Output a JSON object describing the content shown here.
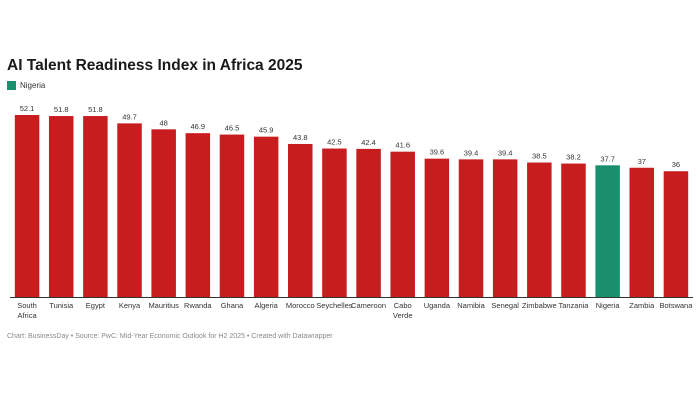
{
  "chart_data": {
    "type": "bar",
    "title": "AI Talent Readiness Index in Africa 2025",
    "legend": [
      {
        "label": "Nigeria",
        "color": "#1a8f6e"
      }
    ],
    "categories": [
      "South Africa",
      "Tunisia",
      "Egypt",
      "Kenya",
      "Mauritius",
      "Rwanda",
      "Ghana",
      "Algeria",
      "Morocco",
      "Seychelles",
      "Cameroon",
      "Cabo Verde",
      "Uganda",
      "Namibia",
      "Senegal",
      "Zimbabwe",
      "Tanzania",
      "Nigeria",
      "Zambia",
      "Botswana"
    ],
    "category_labels": [
      [
        "South",
        "Africa"
      ],
      [
        "Tunisia"
      ],
      [
        "Egypt"
      ],
      [
        "Kenya"
      ],
      [
        "Mauritius"
      ],
      [
        "Rwanda"
      ],
      [
        "Ghana"
      ],
      [
        "Algeria"
      ],
      [
        "Morocco"
      ],
      [
        "Seychelles"
      ],
      [
        "Cameroon"
      ],
      [
        "Cabo",
        "Verde"
      ],
      [
        "Uganda"
      ],
      [
        "Namibia"
      ],
      [
        "Senegal"
      ],
      [
        "Zimbabwe"
      ],
      [
        "Tanzania"
      ],
      [
        "Nigeria"
      ],
      [
        "Zambia"
      ],
      [
        "Botswana"
      ]
    ],
    "values": [
      52.1,
      51.8,
      51.8,
      49.7,
      48,
      46.9,
      46.5,
      45.9,
      43.8,
      42.5,
      42.4,
      41.6,
      39.6,
      39.4,
      39.4,
      38.5,
      38.2,
      37.7,
      37,
      36
    ],
    "value_labels": [
      "52.1",
      "51.8",
      "51.8",
      "49.7",
      "48",
      "46.9",
      "46.5",
      "45.9",
      "43.8",
      "42.5",
      "42.4",
      "41.6",
      "39.6",
      "39.4",
      "39.4",
      "38.5",
      "38.2",
      "37.7",
      "37",
      "36"
    ],
    "highlight": "Nigeria",
    "colors": {
      "default": "#c81d1f",
      "highlight": "#1a8f6e"
    },
    "ylim": [
      0,
      52.1
    ],
    "xlabel": "",
    "ylabel": ""
  },
  "footer": "Chart: BusinessDay • Source: PwC: Mid-Year Economic Outlook for H2 2025 • Created with Datawrapper"
}
